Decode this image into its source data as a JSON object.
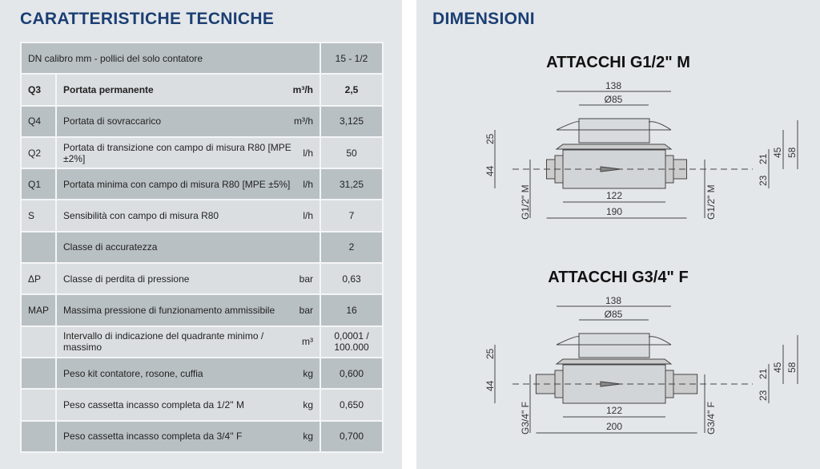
{
  "left": {
    "title": "CARATTERISTICHE TECNICHE",
    "header": {
      "label": "DN calibro mm - pollici del solo contatore",
      "value": "15 - 1/2"
    },
    "rows": [
      {
        "code": "Q3",
        "label": "Portata permanente",
        "unit": "m³/h",
        "value": "2,5",
        "bold": true
      },
      {
        "code": "Q4",
        "label": "Portata di sovraccarico",
        "unit": "m³/h",
        "value": "3,125"
      },
      {
        "code": "Q2",
        "label": "Portata di transizione con campo di misura R80 [MPE ±2%]",
        "unit": "l/h",
        "value": "50"
      },
      {
        "code": "Q1",
        "label": "Portata minima con campo di misura R80 [MPE ±5%]",
        "unit": "l/h",
        "value": "31,25"
      },
      {
        "code": "S",
        "label": "Sensibilità con campo di misura R80",
        "unit": "l/h",
        "value": "7"
      },
      {
        "code": "",
        "label": "Classe di accuratezza",
        "unit": "",
        "value": "2"
      },
      {
        "code": "ΔP",
        "label": "Classe di perdita di pressione",
        "unit": "bar",
        "value": "0,63"
      },
      {
        "code": "MAP",
        "label": "Massima pressione di funzionamento ammissibile",
        "unit": "bar",
        "value": "16"
      },
      {
        "code": "",
        "label": "Intervallo di indicazione del quadrante minimo / massimo",
        "unit": "m³",
        "value": "0,0001 / 100.000"
      },
      {
        "code": "",
        "label": "Peso kit contatore, rosone, cuffia",
        "unit": "kg",
        "value": "0,600"
      },
      {
        "code": "",
        "label": "Peso cassetta incasso completa da 1/2'' M",
        "unit": "kg",
        "value": "0,650"
      },
      {
        "code": "",
        "label": "Peso cassetta incasso completa da 3/4'' F",
        "unit": "kg",
        "value": "0,700"
      }
    ]
  },
  "right": {
    "title": "DIMENSIONI",
    "drawings": [
      {
        "title": "ATTACCHI G1/2\" M",
        "d138": "138",
        "d85": "Ø85",
        "d25": "25",
        "d44": "44",
        "d45": "45",
        "d58": "58",
        "d21": "21",
        "d23": "23",
        "d122": "122",
        "total": "190",
        "thread": "G1/2\" M"
      },
      {
        "title": "ATTACCHI G3/4\" F",
        "d138": "138",
        "d85": "Ø85",
        "d25": "25",
        "d44": "44",
        "d45": "45",
        "d58": "58",
        "d21": "21",
        "d23": "23",
        "d122": "122",
        "total": "200",
        "thread": "G3/4\" F"
      }
    ]
  }
}
